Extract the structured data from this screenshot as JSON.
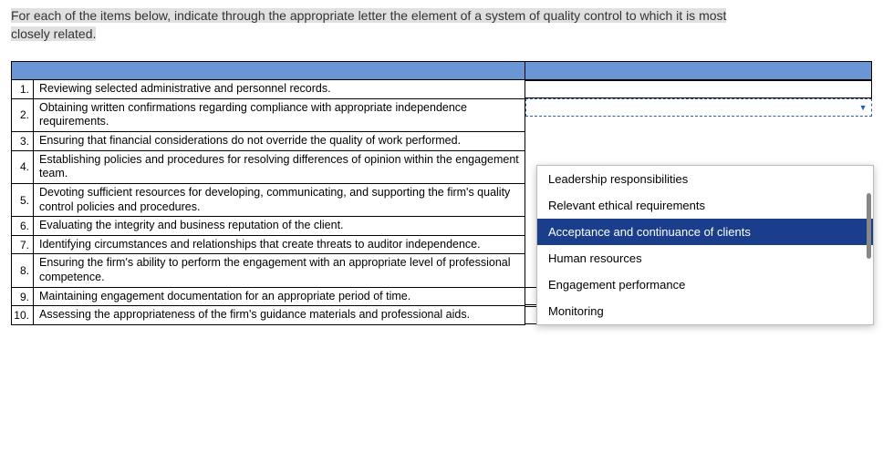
{
  "instructions_line1": "For each of the items below, indicate through the appropriate letter the element of a system of quality control to which it is most",
  "instructions_line2": "closely related.",
  "rows": [
    {
      "num": "1.",
      "text": "Reviewing selected administrative and personnel records."
    },
    {
      "num": "2.",
      "text": "Obtaining written confirmations regarding compliance with appropriate independence requirements."
    },
    {
      "num": "3.",
      "text": "Ensuring that financial considerations do not override the quality of work performed."
    },
    {
      "num": "4.",
      "text": "Establishing policies and procedures for resolving differences of opinion within the engagement team."
    },
    {
      "num": "5.",
      "text": "Devoting sufficient resources for developing, communicating, and supporting the firm's quality control policies and procedures."
    },
    {
      "num": "6.",
      "text": "Evaluating the integrity and business reputation of the client."
    },
    {
      "num": "7.",
      "text": "Identifying circumstances and relationships that create threats to auditor independence."
    },
    {
      "num": "8.",
      "text": "Ensuring the firm's ability to perform the engagement with an appropriate level of professional competence."
    },
    {
      "num": "9.",
      "text": "Maintaining engagement documentation for an appropriate period of time."
    },
    {
      "num": "10.",
      "text": "Assessing the appropriateness of the firm's guidance materials and professional aids."
    }
  ],
  "dropdown": {
    "options": [
      "Leadership responsibilities",
      "Relevant ethical requirements",
      "Acceptance and continuance of clients",
      "Human resources",
      "Engagement performance",
      "Monitoring"
    ],
    "selected_index": 2
  },
  "colors": {
    "header_bg": "#6b96d6",
    "selected_bg": "#1a3e8c",
    "highlight_bg": "#e0e0e0"
  }
}
